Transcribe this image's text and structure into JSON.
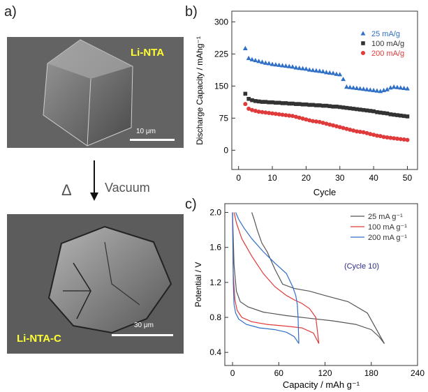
{
  "panels": {
    "a": "a)",
    "b": "b)",
    "c": "c)"
  },
  "sem_top": {
    "label": "Li-NTA",
    "scale": "10 μm"
  },
  "sem_bottom": {
    "label": "Li-NTA-C",
    "scale": "30 μm"
  },
  "process": {
    "delta": "Δ",
    "vacuum": "Vacuum"
  },
  "colors": {
    "blue": "#2f6fc7",
    "black": "#333333",
    "red": "#e03a3a",
    "gray": "#555555"
  },
  "chart_data": [
    {
      "type": "scatter",
      "panel": "b",
      "xlabel": "Cycle",
      "ylabel": "Discharge Capacity / mAhg⁻¹",
      "xlim": [
        -2,
        53
      ],
      "ylim": [
        -45,
        325
      ],
      "xticks": [
        "0",
        "10",
        "20",
        "30",
        "40",
        "50"
      ],
      "yticks": [
        "0",
        "75",
        "150",
        "225",
        "300"
      ],
      "legend_position": "top-right",
      "series": [
        {
          "name": "25 mA/g",
          "marker": "triangle",
          "color": "#2f6fc7",
          "x": [
            2,
            3,
            4,
            5,
            6,
            7,
            8,
            9,
            10,
            11,
            12,
            13,
            14,
            15,
            16,
            17,
            18,
            19,
            20,
            21,
            22,
            23,
            24,
            25,
            26,
            27,
            28,
            29,
            30,
            31,
            32,
            33,
            34,
            35,
            36,
            37,
            38,
            39,
            40,
            41,
            42,
            43,
            44,
            45,
            46,
            47,
            48,
            49,
            50
          ],
          "y": [
            238,
            215,
            212,
            210,
            208,
            206,
            204,
            203,
            201,
            200,
            199,
            198,
            197,
            196,
            195,
            193,
            192,
            191,
            190,
            188,
            187,
            186,
            185,
            184,
            182,
            181,
            180,
            178,
            177,
            166,
            148,
            147,
            146,
            145,
            144,
            143,
            142,
            141,
            140,
            139,
            138,
            140,
            142,
            146,
            148,
            147,
            146,
            145,
            144
          ]
        },
        {
          "name": "100 mA/g",
          "marker": "square",
          "color": "#333333",
          "x": [
            2,
            3,
            4,
            5,
            6,
            7,
            8,
            9,
            10,
            11,
            12,
            13,
            14,
            15,
            16,
            17,
            18,
            19,
            20,
            21,
            22,
            23,
            24,
            25,
            26,
            27,
            28,
            29,
            30,
            31,
            32,
            33,
            34,
            35,
            36,
            37,
            38,
            39,
            40,
            41,
            42,
            43,
            44,
            45,
            46,
            47,
            48,
            49,
            50
          ],
          "y": [
            132,
            120,
            117,
            115,
            114,
            113,
            113,
            112,
            112,
            111,
            111,
            110,
            110,
            109,
            109,
            108,
            108,
            107,
            107,
            106,
            106,
            105,
            105,
            104,
            104,
            103,
            102,
            102,
            101,
            100,
            99,
            98,
            97,
            96,
            95,
            94,
            93,
            92,
            91,
            89,
            88,
            87,
            86,
            84,
            83,
            82,
            81,
            80,
            79
          ]
        },
        {
          "name": "200 mA/g",
          "marker": "circle",
          "color": "#e03a3a",
          "x": [
            2,
            3,
            4,
            5,
            6,
            7,
            8,
            9,
            10,
            11,
            12,
            13,
            14,
            15,
            16,
            17,
            18,
            19,
            20,
            21,
            22,
            23,
            24,
            25,
            26,
            27,
            28,
            29,
            30,
            31,
            32,
            33,
            34,
            35,
            36,
            37,
            38,
            39,
            40,
            41,
            42,
            43,
            44,
            45,
            46,
            47,
            48,
            49,
            50
          ],
          "y": [
            108,
            97,
            94,
            92,
            90,
            89,
            88,
            87,
            86,
            85,
            84,
            83,
            82,
            81,
            80,
            78,
            76,
            74,
            72,
            70,
            68,
            67,
            66,
            64,
            62,
            60,
            58,
            56,
            54,
            52,
            50,
            48,
            46,
            44,
            43,
            42,
            40,
            38,
            36,
            34,
            33,
            31,
            30,
            29,
            28,
            27,
            26,
            25,
            24
          ]
        }
      ]
    },
    {
      "type": "line",
      "panel": "c",
      "xlabel": "Capacity / mAh g⁻¹",
      "ylabel": "Potential / V",
      "xlim": [
        -10,
        240
      ],
      "ylim": [
        0.25,
        2.1
      ],
      "xticks": [
        "0",
        "60",
        "120",
        "180",
        "240"
      ],
      "yticks": [
        "0.4",
        "0.8",
        "1.2",
        "1.6",
        "2.0"
      ],
      "legend_position": "top-right",
      "annotation": "(Cycle 10)",
      "series": [
        {
          "name": "25 mA g⁻¹",
          "color": "#555555",
          "discharge": {
            "x": [
              0,
              2,
              5,
              10,
              20,
              40,
              70,
              100,
              130,
              160,
              180,
              190,
              197
            ],
            "y": [
              2.0,
              1.4,
              1.1,
              0.98,
              0.92,
              0.86,
              0.82,
              0.79,
              0.76,
              0.72,
              0.66,
              0.58,
              0.5
            ]
          },
          "charge": {
            "x": [
              197,
              175,
              150,
              120,
              100,
              80,
              65,
              55,
              45,
              38,
              32,
              28,
              25
            ],
            "y": [
              0.5,
              0.85,
              0.98,
              1.05,
              1.1,
              1.13,
              1.18,
              1.35,
              1.55,
              1.65,
              1.8,
              1.92,
              2.0
            ]
          }
        },
        {
          "name": "100 mA g⁻¹",
          "color": "#e03a3a",
          "discharge": {
            "x": [
              0,
              1,
              3,
              6,
              12,
              25,
              45,
              70,
              90,
              105,
              112
            ],
            "y": [
              2.0,
              1.3,
              1.0,
              0.88,
              0.8,
              0.75,
              0.72,
              0.7,
              0.68,
              0.62,
              0.5
            ]
          },
          "charge": {
            "x": [
              112,
              108,
              100,
              90,
              80,
              70,
              55,
              40,
              25,
              12,
              5,
              2
            ],
            "y": [
              0.5,
              0.8,
              0.9,
              0.96,
              1.0,
              1.05,
              1.15,
              1.3,
              1.5,
              1.7,
              1.88,
              2.0
            ]
          }
        },
        {
          "name": "200 mA g⁻¹",
          "color": "#2f6fc7",
          "discharge": {
            "x": [
              0,
              1,
              2,
              4,
              8,
              18,
              35,
              55,
              70,
              80,
              86
            ],
            "y": [
              2.0,
              1.2,
              0.95,
              0.85,
              0.78,
              0.72,
              0.68,
              0.66,
              0.63,
              0.58,
              0.5
            ]
          },
          "charge": {
            "x": [
              86,
              85,
              84,
              82,
              78,
              70,
              55,
              40,
              25,
              15,
              8,
              4
            ],
            "y": [
              0.5,
              0.8,
              0.95,
              1.05,
              1.15,
              1.3,
              1.42,
              1.55,
              1.7,
              1.82,
              1.92,
              2.0
            ]
          }
        }
      ]
    }
  ]
}
